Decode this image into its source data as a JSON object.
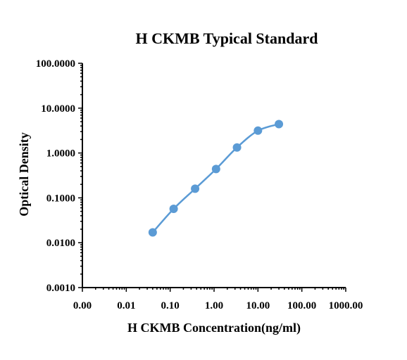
{
  "chart_data": {
    "type": "scatter",
    "title": "H CKMB Typical Standard",
    "xlabel": "H CKMB Concentration(ng/ml)",
    "ylabel": "Optical Density",
    "x_scale": "log",
    "y_scale": "log",
    "xlim": [
      0.001,
      1000
    ],
    "ylim": [
      0.001,
      100
    ],
    "x_tick_values": [
      0.001,
      0.01,
      0.1,
      1,
      10,
      100,
      1000
    ],
    "x_tick_labels": [
      "0.00",
      "0.01",
      "0.10",
      "1.00",
      "10.00",
      "100.00",
      "1000.00"
    ],
    "y_tick_values": [
      0.001,
      0.01,
      0.1,
      1,
      10,
      100
    ],
    "y_tick_labels": [
      "0.0010",
      "0.0100",
      "0.1000",
      "1.0000",
      "10.0000",
      "100.0000"
    ],
    "grid": false,
    "series": [
      {
        "x": [
          0.04,
          0.12,
          0.37,
          1.11,
          3.33,
          10,
          30
        ],
        "y": [
          0.017,
          0.057,
          0.16,
          0.44,
          1.33,
          3.15,
          4.4
        ]
      }
    ],
    "colors": {
      "series": "#5b9bd5",
      "axis": "#000000"
    }
  }
}
